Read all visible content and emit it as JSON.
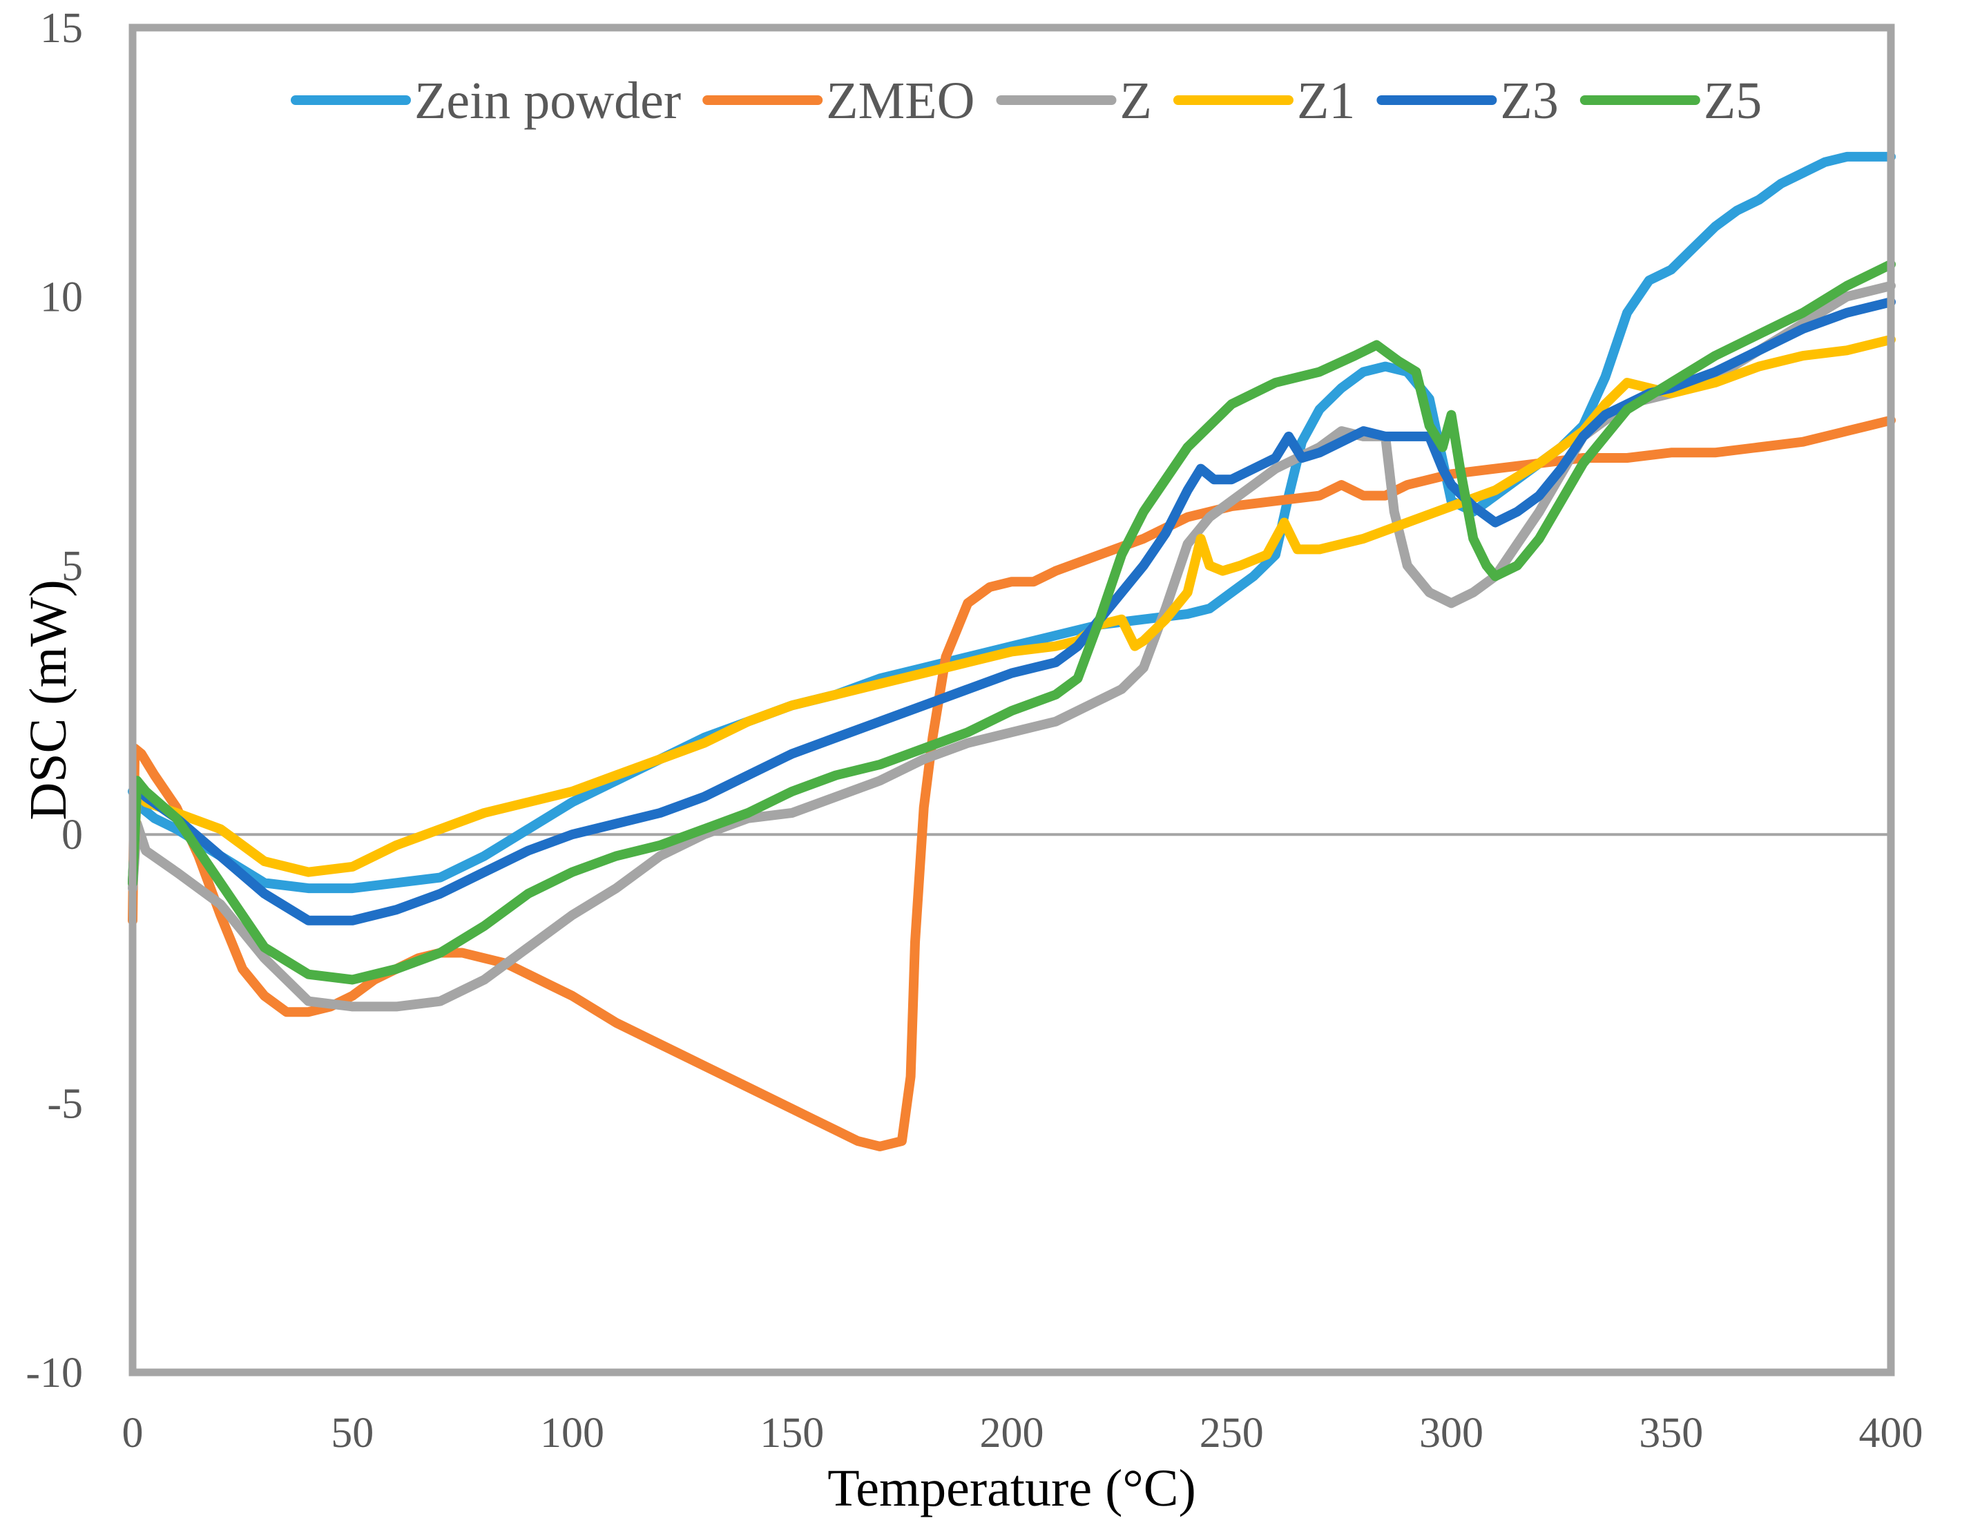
{
  "chart_data": {
    "type": "line",
    "title": "",
    "xlabel": "Temperature (°C)",
    "ylabel": "DSC (mW)",
    "xlim": [
      0,
      400
    ],
    "ylim": [
      -10,
      15
    ],
    "x_ticks": [
      0,
      50,
      100,
      150,
      200,
      250,
      300,
      350,
      400
    ],
    "x_tick_labels": [
      "0",
      "50",
      "100",
      "150",
      "200",
      "250",
      "300",
      "350",
      "400"
    ],
    "y_ticks": [
      -10,
      -5,
      0,
      5,
      10,
      15
    ],
    "y_tick_labels": [
      "-10",
      "-5",
      "0",
      "5",
      "10",
      "15"
    ],
    "grid": false,
    "zero_line": true,
    "legend_position": "top",
    "series": [
      {
        "name": "Zein powder",
        "color": "#2E9FDB",
        "x": [
          0,
          2,
          5,
          10,
          20,
          30,
          40,
          50,
          60,
          70,
          80,
          90,
          100,
          110,
          120,
          130,
          140,
          150,
          160,
          170,
          180,
          190,
          200,
          210,
          220,
          230,
          240,
          245,
          250,
          255,
          260,
          263,
          266,
          270,
          275,
          280,
          285,
          290,
          295,
          300,
          305,
          310,
          315,
          320,
          325,
          330,
          335,
          340,
          345,
          350,
          355,
          360,
          365,
          370,
          375,
          380,
          385,
          390,
          395,
          400
        ],
        "y": [
          0.8,
          0.5,
          0.3,
          0.1,
          -0.4,
          -0.9,
          -1.0,
          -1.0,
          -0.9,
          -0.8,
          -0.4,
          0.1,
          0.6,
          1.0,
          1.4,
          1.8,
          2.1,
          2.4,
          2.6,
          2.9,
          3.1,
          3.3,
          3.5,
          3.7,
          3.9,
          4.0,
          4.1,
          4.2,
          4.5,
          4.8,
          5.2,
          6.3,
          7.3,
          7.9,
          8.3,
          8.6,
          8.7,
          8.6,
          8.1,
          6.2,
          6.0,
          6.3,
          6.6,
          6.9,
          7.2,
          7.6,
          8.5,
          9.7,
          10.3,
          10.5,
          10.9,
          11.3,
          11.6,
          11.8,
          12.1,
          12.3,
          12.5,
          12.6,
          12.6,
          12.6
        ]
      },
      {
        "name": "ZMEO",
        "color": "#F58231",
        "x": [
          0,
          0.5,
          2,
          5,
          10,
          15,
          20,
          25,
          30,
          35,
          40,
          45,
          50,
          55,
          60,
          65,
          70,
          75,
          80,
          85,
          90,
          95,
          100,
          110,
          120,
          130,
          140,
          150,
          155,
          160,
          165,
          170,
          175,
          177,
          178,
          180,
          182,
          185,
          190,
          195,
          200,
          205,
          210,
          220,
          230,
          240,
          250,
          260,
          270,
          275,
          280,
          285,
          290,
          300,
          310,
          320,
          330,
          340,
          350,
          360,
          370,
          380,
          390,
          395,
          400
        ],
        "y": [
          -1.6,
          1.6,
          1.5,
          1.1,
          0.5,
          -0.4,
          -1.5,
          -2.5,
          -3.0,
          -3.3,
          -3.3,
          -3.2,
          -3.0,
          -2.7,
          -2.5,
          -2.3,
          -2.2,
          -2.2,
          -2.3,
          -2.4,
          -2.6,
          -2.8,
          -3.0,
          -3.5,
          -3.9,
          -4.3,
          -4.7,
          -5.1,
          -5.3,
          -5.5,
          -5.7,
          -5.8,
          -5.7,
          -4.5,
          -2.0,
          0.5,
          1.8,
          3.3,
          4.3,
          4.6,
          4.7,
          4.7,
          4.9,
          5.2,
          5.5,
          5.9,
          6.1,
          6.2,
          6.3,
          6.5,
          6.3,
          6.3,
          6.5,
          6.7,
          6.8,
          6.9,
          7.0,
          7.0,
          7.1,
          7.1,
          7.2,
          7.3,
          7.5,
          7.6,
          7.7
        ]
      },
      {
        "name": "Z",
        "color": "#A5A5A5",
        "x": [
          0,
          1,
          3,
          10,
          20,
          30,
          40,
          50,
          60,
          70,
          80,
          90,
          100,
          110,
          120,
          130,
          140,
          150,
          160,
          170,
          180,
          190,
          200,
          210,
          220,
          225,
          230,
          235,
          240,
          245,
          250,
          255,
          260,
          265,
          270,
          275,
          280,
          285,
          287,
          290,
          295,
          300,
          305,
          310,
          315,
          320,
          330,
          340,
          350,
          360,
          370,
          380,
          390,
          400
        ],
        "y": [
          -1.0,
          0.2,
          -0.3,
          -0.7,
          -1.3,
          -2.3,
          -3.1,
          -3.2,
          -3.2,
          -3.1,
          -2.7,
          -2.1,
          -1.5,
          -1.0,
          -0.4,
          0.0,
          0.3,
          0.4,
          0.7,
          1.0,
          1.4,
          1.7,
          1.9,
          2.1,
          2.5,
          2.7,
          3.1,
          4.2,
          5.4,
          5.9,
          6.2,
          6.5,
          6.8,
          7.0,
          7.2,
          7.5,
          7.4,
          7.4,
          6.0,
          5.0,
          4.5,
          4.3,
          4.5,
          4.8,
          5.4,
          6.0,
          7.4,
          8.0,
          8.2,
          8.5,
          9.0,
          9.5,
          10.0,
          10.2
        ]
      },
      {
        "name": "Z1",
        "color": "#FFC000",
        "x": [
          0,
          1,
          3,
          10,
          20,
          30,
          40,
          50,
          60,
          70,
          80,
          90,
          100,
          110,
          120,
          130,
          140,
          150,
          160,
          170,
          180,
          190,
          200,
          210,
          215,
          220,
          225,
          228,
          230,
          235,
          240,
          243,
          245,
          248,
          252,
          258,
          262,
          265,
          270,
          280,
          290,
          300,
          310,
          320,
          330,
          335,
          340,
          345,
          350,
          360,
          370,
          380,
          390,
          400
        ],
        "y": [
          -0.9,
          0.8,
          0.6,
          0.4,
          0.1,
          -0.5,
          -0.7,
          -0.6,
          -0.2,
          0.1,
          0.4,
          0.6,
          0.8,
          1.1,
          1.4,
          1.7,
          2.1,
          2.4,
          2.6,
          2.8,
          3.0,
          3.2,
          3.4,
          3.5,
          3.6,
          3.9,
          4.0,
          3.5,
          3.6,
          4.0,
          4.5,
          5.5,
          5.0,
          4.9,
          5.0,
          5.2,
          5.8,
          5.3,
          5.3,
          5.5,
          5.8,
          6.1,
          6.4,
          6.9,
          7.5,
          8.0,
          8.4,
          8.3,
          8.2,
          8.4,
          8.7,
          8.9,
          9.0,
          9.2
        ]
      },
      {
        "name": "Z3",
        "color": "#1F6FC6",
        "x": [
          0,
          1,
          3,
          10,
          20,
          30,
          40,
          50,
          60,
          70,
          80,
          90,
          100,
          110,
          120,
          130,
          140,
          150,
          160,
          170,
          180,
          190,
          200,
          210,
          215,
          220,
          230,
          235,
          240,
          243,
          246,
          250,
          255,
          260,
          263,
          266,
          270,
          275,
          280,
          285,
          290,
          295,
          298,
          300,
          305,
          310,
          315,
          320,
          325,
          330,
          335,
          340,
          345,
          350,
          360,
          370,
          380,
          390,
          400
        ],
        "y": [
          -0.9,
          0.9,
          0.7,
          0.3,
          -0.4,
          -1.1,
          -1.6,
          -1.6,
          -1.4,
          -1.1,
          -0.7,
          -0.3,
          0.0,
          0.2,
          0.4,
          0.7,
          1.1,
          1.5,
          1.8,
          2.1,
          2.4,
          2.7,
          3.0,
          3.2,
          3.5,
          4.0,
          5.0,
          5.6,
          6.4,
          6.8,
          6.6,
          6.6,
          6.8,
          7.0,
          7.4,
          7.0,
          7.1,
          7.3,
          7.5,
          7.4,
          7.4,
          7.4,
          6.8,
          6.5,
          6.1,
          5.8,
          6.0,
          6.3,
          6.8,
          7.4,
          7.8,
          8.0,
          8.2,
          8.3,
          8.6,
          9.0,
          9.4,
          9.7,
          9.9
        ]
      },
      {
        "name": "Z5",
        "color": "#4CAF45",
        "x": [
          0,
          1,
          3,
          10,
          20,
          30,
          40,
          50,
          60,
          70,
          80,
          90,
          100,
          110,
          120,
          130,
          140,
          150,
          160,
          170,
          180,
          190,
          200,
          210,
          215,
          220,
          225,
          230,
          240,
          250,
          260,
          270,
          278,
          283,
          288,
          292,
          295,
          298,
          300,
          302,
          305,
          308,
          310,
          315,
          320,
          330,
          340,
          350,
          360,
          370,
          380,
          390,
          400
        ],
        "y": [
          -0.9,
          1.0,
          0.8,
          0.3,
          -0.9,
          -2.1,
          -2.6,
          -2.7,
          -2.5,
          -2.2,
          -1.7,
          -1.1,
          -0.7,
          -0.4,
          -0.2,
          0.1,
          0.4,
          0.8,
          1.1,
          1.3,
          1.6,
          1.9,
          2.3,
          2.6,
          2.9,
          4.0,
          5.2,
          6.0,
          7.2,
          8.0,
          8.4,
          8.6,
          8.9,
          9.1,
          8.8,
          8.6,
          7.6,
          7.2,
          7.8,
          6.8,
          5.5,
          5.0,
          4.8,
          5.0,
          5.5,
          6.9,
          7.9,
          8.4,
          8.9,
          9.3,
          9.7,
          10.2,
          10.6
        ]
      }
    ]
  }
}
